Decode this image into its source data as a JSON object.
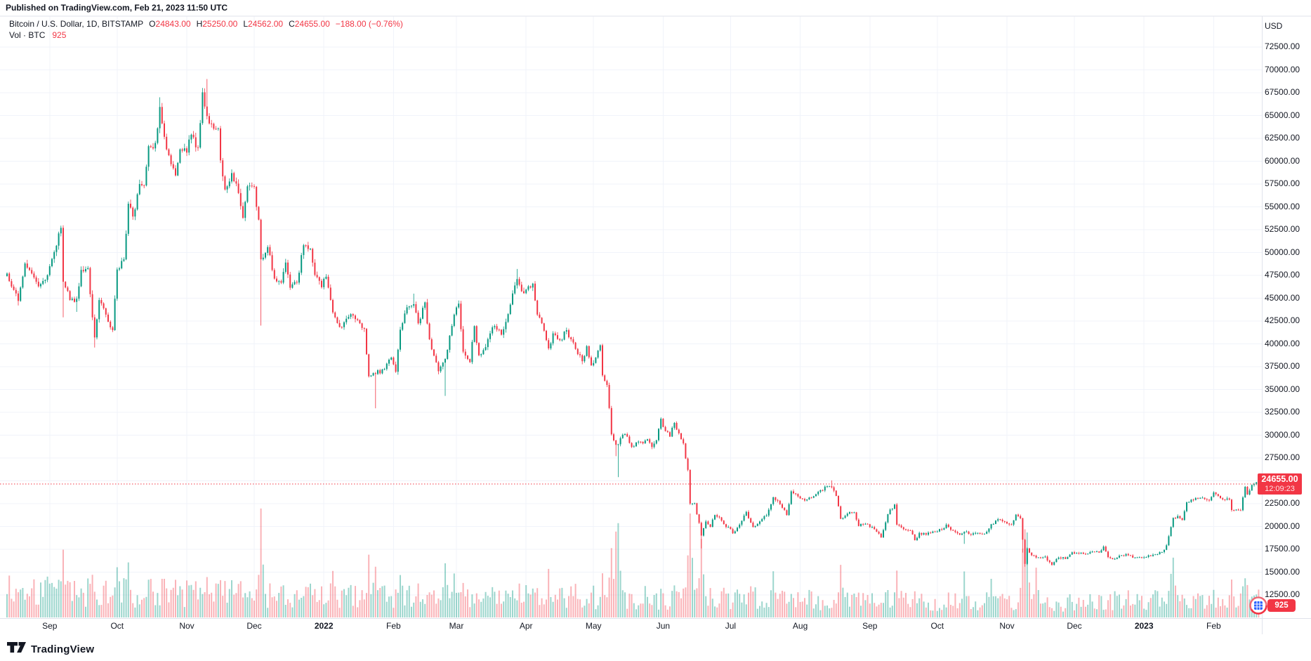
{
  "published_bar": {
    "text": "Published on TradingView.com, Feb 21, 2023 11:50 UTC"
  },
  "legend": {
    "title": "Bitcoin / U.S. Dollar, 1D, BITSTAMP",
    "items": [
      {
        "label": "O",
        "value": "24843.00"
      },
      {
        "label": "H",
        "value": "25250.00"
      },
      {
        "label": "L",
        "value": "24562.00"
      },
      {
        "label": "C",
        "value": "24655.00"
      }
    ],
    "change": "−188.00 (−0.76%)",
    "vol_label": "Vol",
    "vol_sep": "·",
    "vol_asset": "BTC",
    "vol_value": "925"
  },
  "price_axis": {
    "currency_label": "USD",
    "ticks": [
      "72500.00",
      "70000.00",
      "67500.00",
      "65000.00",
      "62500.00",
      "60000.00",
      "57500.00",
      "55000.00",
      "52500.00",
      "50000.00",
      "47500.00",
      "45000.00",
      "42500.00",
      "40000.00",
      "37500.00",
      "35000.00",
      "32500.00",
      "30000.00",
      "27500.00",
      "25000.00",
      "22500.00",
      "20000.00",
      "17500.00",
      "15000.00",
      "12500.00"
    ],
    "last_price_badge": {
      "price": "24655.00",
      "countdown": "12:09:23"
    }
  },
  "time_axis": {
    "labels": [
      {
        "text": "Sep",
        "date": "2021-09-01"
      },
      {
        "text": "Oct",
        "date": "2021-10-01"
      },
      {
        "text": "Nov",
        "date": "2021-11-01"
      },
      {
        "text": "Dec",
        "date": "2021-12-01"
      },
      {
        "text": "2022",
        "date": "2022-01-01",
        "year": true
      },
      {
        "text": "Feb",
        "date": "2022-02-01"
      },
      {
        "text": "Mar",
        "date": "2022-03-01"
      },
      {
        "text": "Apr",
        "date": "2022-04-01"
      },
      {
        "text": "May",
        "date": "2022-05-01"
      },
      {
        "text": "Jun",
        "date": "2022-06-01"
      },
      {
        "text": "Jul",
        "date": "2022-07-01"
      },
      {
        "text": "Aug",
        "date": "2022-08-01"
      },
      {
        "text": "Sep",
        "date": "2022-09-01"
      },
      {
        "text": "Oct",
        "date": "2022-10-01"
      },
      {
        "text": "Nov",
        "date": "2022-11-01"
      },
      {
        "text": "Dec",
        "date": "2022-12-01"
      },
      {
        "text": "2023",
        "date": "2023-01-01",
        "year": true
      },
      {
        "text": "Feb",
        "date": "2023-02-01"
      }
    ]
  },
  "volume_badge": {
    "value": "925"
  },
  "footer": {
    "logo_text": "TradingView"
  },
  "colors": {
    "up": "#089981",
    "down": "#f23645",
    "vol_up": "rgba(8,153,129,0.40)",
    "vol_down": "rgba(242,54,69,0.38)",
    "grid": "#f0f3fa",
    "border": "#e0e3eb",
    "text": "#131722",
    "accent_red": "#f23645",
    "background": "#ffffff"
  },
  "chart_data": {
    "type": "candlestick",
    "symbol": "Bitcoin / U.S. Dollar",
    "exchange": "BITSTAMP",
    "interval": "1D",
    "currency": "USD",
    "current": {
      "open": 24843.0,
      "high": 25250.0,
      "low": 24562.0,
      "close": 24655.0,
      "change": -188.0,
      "change_pct": -0.76,
      "volume_btc": 925
    },
    "last_price": 24655,
    "countdown": "12:09:23",
    "y_axis": {
      "tick_step": 2500,
      "min_tick": 12500,
      "max_tick": 72500,
      "grid": true
    },
    "x_start": "2021-08-13",
    "x_end": "2023-02-21",
    "price_path": [
      {
        "d": "2021-08-13",
        "c": 47700,
        "vb": 0.2
      },
      {
        "d": "2021-08-16",
        "c": 45900
      },
      {
        "d": "2021-08-18",
        "c": 44700,
        "lo": 44200
      },
      {
        "d": "2021-08-21",
        "c": 48800
      },
      {
        "d": "2021-08-24",
        "c": 47700
      },
      {
        "d": "2021-08-27",
        "c": 46300
      },
      {
        "d": "2021-08-30",
        "c": 47000
      },
      {
        "d": "2021-09-02",
        "c": 49300
      },
      {
        "d": "2021-09-06",
        "c": 52700,
        "hi": 52950
      },
      {
        "d": "2021-09-07",
        "c": 46800,
        "lo": 42900,
        "v": 0.45
      },
      {
        "d": "2021-09-10",
        "c": 44800
      },
      {
        "d": "2021-09-13",
        "c": 44950,
        "lo": 43500
      },
      {
        "d": "2021-09-15",
        "c": 48100
      },
      {
        "d": "2021-09-18",
        "c": 48300
      },
      {
        "d": "2021-09-20",
        "c": 42900,
        "v": 0.35
      },
      {
        "d": "2021-09-21",
        "c": 40700,
        "lo": 39600
      },
      {
        "d": "2021-09-23",
        "c": 44800
      },
      {
        "d": "2021-09-26",
        "c": 43200
      },
      {
        "d": "2021-09-29",
        "c": 41500
      },
      {
        "d": "2021-10-01",
        "c": 48150,
        "v": 0.32
      },
      {
        "d": "2021-10-04",
        "c": 49250
      },
      {
        "d": "2021-10-06",
        "c": 55350,
        "v": 0.35
      },
      {
        "d": "2021-10-08",
        "c": 53950
      },
      {
        "d": "2021-10-11",
        "c": 57500
      },
      {
        "d": "2021-10-13",
        "c": 57350
      },
      {
        "d": "2021-10-15",
        "c": 61650,
        "v": 0.3
      },
      {
        "d": "2021-10-18",
        "c": 62000
      },
      {
        "d": "2021-10-20",
        "c": 65950,
        "hi": 67000
      },
      {
        "d": "2021-10-23",
        "c": 61300
      },
      {
        "d": "2021-10-27",
        "c": 58450,
        "v": 0.3
      },
      {
        "d": "2021-10-29",
        "c": 61300
      },
      {
        "d": "2021-11-01",
        "c": 60950,
        "vb": 0.18
      },
      {
        "d": "2021-11-03",
        "c": 62900
      },
      {
        "d": "2021-11-06",
        "c": 61500
      },
      {
        "d": "2021-11-08",
        "c": 67550
      },
      {
        "d": "2021-11-10",
        "c": 64950,
        "hi": 69000,
        "v": 0.32
      },
      {
        "d": "2021-11-12",
        "c": 64100
      },
      {
        "d": "2021-11-15",
        "c": 63600
      },
      {
        "d": "2021-11-16",
        "c": 60100,
        "v": 0.3
      },
      {
        "d": "2021-11-18",
        "c": 56900
      },
      {
        "d": "2021-11-21",
        "c": 58700
      },
      {
        "d": "2021-11-23",
        "c": 57550
      },
      {
        "d": "2021-11-26",
        "c": 53800
      },
      {
        "d": "2021-11-28",
        "c": 57250
      },
      {
        "d": "2021-12-01",
        "c": 57200
      },
      {
        "d": "2021-12-03",
        "c": 53600
      },
      {
        "d": "2021-12-04",
        "c": 49250,
        "lo": 42000,
        "v": 0.68
      },
      {
        "d": "2021-12-07",
        "c": 50600
      },
      {
        "d": "2021-12-10",
        "c": 47150
      },
      {
        "d": "2021-12-13",
        "c": 46700
      },
      {
        "d": "2021-12-15",
        "c": 48900
      },
      {
        "d": "2021-12-17",
        "c": 46150
      },
      {
        "d": "2021-12-20",
        "c": 46700
      },
      {
        "d": "2021-12-23",
        "c": 50800
      },
      {
        "d": "2021-12-26",
        "c": 50400
      },
      {
        "d": "2021-12-28",
        "c": 47550
      },
      {
        "d": "2021-12-31",
        "c": 46200,
        "vb": 0.16
      },
      {
        "d": "2022-01-02",
        "c": 47350
      },
      {
        "d": "2022-01-05",
        "c": 43450,
        "v": 0.3
      },
      {
        "d": "2022-01-08",
        "c": 41850
      },
      {
        "d": "2022-01-11",
        "c": 42750
      },
      {
        "d": "2022-01-14",
        "c": 43100
      },
      {
        "d": "2022-01-17",
        "c": 42250
      },
      {
        "d": "2022-01-19",
        "c": 41650
      },
      {
        "d": "2022-01-21",
        "c": 36450,
        "v": 0.38
      },
      {
        "d": "2022-01-24",
        "c": 36700,
        "lo": 32950,
        "v": 0.42
      },
      {
        "d": "2022-01-27",
        "c": 37200
      },
      {
        "d": "2022-01-31",
        "c": 38500
      },
      {
        "d": "2022-02-02",
        "c": 36950
      },
      {
        "d": "2022-02-04",
        "c": 41550,
        "v": 0.3
      },
      {
        "d": "2022-02-07",
        "c": 44000
      },
      {
        "d": "2022-02-10",
        "c": 44350,
        "hi": 45500
      },
      {
        "d": "2022-02-12",
        "c": 42250
      },
      {
        "d": "2022-02-15",
        "c": 44550
      },
      {
        "d": "2022-02-17",
        "c": 40500
      },
      {
        "d": "2022-02-21",
        "c": 37000
      },
      {
        "d": "2022-02-24",
        "c": 38350,
        "lo": 34300,
        "v": 0.45
      },
      {
        "d": "2022-02-28",
        "c": 43200,
        "v": 0.35
      },
      {
        "d": "2022-03-02",
        "c": 44400
      },
      {
        "d": "2022-03-04",
        "c": 39150
      },
      {
        "d": "2022-03-07",
        "c": 38000
      },
      {
        "d": "2022-03-09",
        "c": 41950
      },
      {
        "d": "2022-03-11",
        "c": 38750
      },
      {
        "d": "2022-03-14",
        "c": 39650
      },
      {
        "d": "2022-03-16",
        "c": 41150
      },
      {
        "d": "2022-03-18",
        "c": 41950
      },
      {
        "d": "2022-03-21",
        "c": 41000
      },
      {
        "d": "2022-03-23",
        "c": 42400
      },
      {
        "d": "2022-03-25",
        "c": 44300
      },
      {
        "d": "2022-03-28",
        "c": 47100,
        "hi": 48200
      },
      {
        "d": "2022-03-31",
        "c": 45550
      },
      {
        "d": "2022-04-02",
        "c": 46300
      },
      {
        "d": "2022-04-04",
        "c": 46600
      },
      {
        "d": "2022-04-06",
        "c": 43200
      },
      {
        "d": "2022-04-08",
        "c": 42250
      },
      {
        "d": "2022-04-11",
        "c": 39500,
        "v": 0.3
      },
      {
        "d": "2022-04-13",
        "c": 41150
      },
      {
        "d": "2022-04-16",
        "c": 40400
      },
      {
        "d": "2022-04-19",
        "c": 41500
      },
      {
        "d": "2022-04-21",
        "c": 40500
      },
      {
        "d": "2022-04-23",
        "c": 39450
      },
      {
        "d": "2022-04-26",
        "c": 38100
      },
      {
        "d": "2022-04-28",
        "c": 39750
      },
      {
        "d": "2022-04-30",
        "c": 37650,
        "vb": 0.16
      },
      {
        "d": "2022-05-02",
        "c": 38500
      },
      {
        "d": "2022-05-04",
        "c": 39850
      },
      {
        "d": "2022-05-05",
        "c": 36550,
        "v": 0.35
      },
      {
        "d": "2022-05-07",
        "c": 35500
      },
      {
        "d": "2022-05-09",
        "c": 30100,
        "v": 0.5
      },
      {
        "d": "2022-05-11",
        "c": 28950,
        "lo": 27700,
        "v": 0.62
      },
      {
        "d": "2022-05-12",
        "c": 29000,
        "lo": 25400,
        "v": 0.75
      },
      {
        "d": "2022-05-14",
        "c": 30050
      },
      {
        "d": "2022-05-16",
        "c": 29850
      },
      {
        "d": "2022-05-18",
        "c": 28700
      },
      {
        "d": "2022-05-20",
        "c": 29200
      },
      {
        "d": "2022-05-23",
        "c": 29100
      },
      {
        "d": "2022-05-25",
        "c": 29550
      },
      {
        "d": "2022-05-27",
        "c": 28700
      },
      {
        "d": "2022-05-29",
        "c": 29450
      },
      {
        "d": "2022-05-31",
        "c": 31800
      },
      {
        "d": "2022-06-02",
        "c": 30450
      },
      {
        "d": "2022-06-04",
        "c": 29850
      },
      {
        "d": "2022-06-06",
        "c": 31350
      },
      {
        "d": "2022-06-08",
        "c": 30200
      },
      {
        "d": "2022-06-10",
        "c": 29100
      },
      {
        "d": "2022-06-12",
        "c": 26200,
        "v": 0.5
      },
      {
        "d": "2022-06-13",
        "c": 22500,
        "v": 0.88
      },
      {
        "d": "2022-06-15",
        "c": 22550
      },
      {
        "d": "2022-06-17",
        "c": 20400
      },
      {
        "d": "2022-06-18",
        "c": 19000,
        "lo": 17600,
        "v": 0.55
      },
      {
        "d": "2022-06-20",
        "c": 20550
      },
      {
        "d": "2022-06-22",
        "c": 19950
      },
      {
        "d": "2022-06-24",
        "c": 21250
      },
      {
        "d": "2022-06-26",
        "c": 21000
      },
      {
        "d": "2022-06-28",
        "c": 20250
      },
      {
        "d": "2022-06-30",
        "c": 19950,
        "vb": 0.15
      },
      {
        "d": "2022-07-02",
        "c": 19250
      },
      {
        "d": "2022-07-05",
        "c": 20200
      },
      {
        "d": "2022-07-08",
        "c": 21600
      },
      {
        "d": "2022-07-11",
        "c": 19950
      },
      {
        "d": "2022-07-14",
        "c": 20550
      },
      {
        "d": "2022-07-17",
        "c": 21200
      },
      {
        "d": "2022-07-20",
        "c": 23200,
        "v": 0.3
      },
      {
        "d": "2022-07-23",
        "c": 22450
      },
      {
        "d": "2022-07-26",
        "c": 21250
      },
      {
        "d": "2022-07-28",
        "c": 23850
      },
      {
        "d": "2022-07-31",
        "c": 23300
      },
      {
        "d": "2022-08-03",
        "c": 22850
      },
      {
        "d": "2022-08-06",
        "c": 23150
      },
      {
        "d": "2022-08-09",
        "c": 23800
      },
      {
        "d": "2022-08-11",
        "c": 23950
      },
      {
        "d": "2022-08-13",
        "c": 24400
      },
      {
        "d": "2022-08-15",
        "c": 24300,
        "hi": 25050
      },
      {
        "d": "2022-08-17",
        "c": 23350
      },
      {
        "d": "2022-08-19",
        "c": 20850,
        "v": 0.38
      },
      {
        "d": "2022-08-22",
        "c": 21400
      },
      {
        "d": "2022-08-25",
        "c": 21550
      },
      {
        "d": "2022-08-27",
        "c": 20050
      },
      {
        "d": "2022-08-30",
        "c": 20300
      },
      {
        "d": "2022-09-02",
        "c": 19950,
        "vb": 0.13
      },
      {
        "d": "2022-09-06",
        "c": 18800
      },
      {
        "d": "2022-09-09",
        "c": 21350
      },
      {
        "d": "2022-09-12",
        "c": 22400
      },
      {
        "d": "2022-09-13",
        "c": 20200,
        "v": 0.32
      },
      {
        "d": "2022-09-16",
        "c": 19700
      },
      {
        "d": "2022-09-19",
        "c": 19550
      },
      {
        "d": "2022-09-21",
        "c": 18500
      },
      {
        "d": "2022-09-23",
        "c": 19300
      },
      {
        "d": "2022-09-26",
        "c": 19100
      },
      {
        "d": "2022-09-30",
        "c": 19400
      },
      {
        "d": "2022-10-03",
        "c": 19650
      },
      {
        "d": "2022-10-05",
        "c": 20200
      },
      {
        "d": "2022-10-08",
        "c": 19550
      },
      {
        "d": "2022-10-11",
        "c": 19100
      },
      {
        "d": "2022-10-13",
        "c": 19400,
        "lo": 18100,
        "v": 0.3
      },
      {
        "d": "2022-10-16",
        "c": 19100
      },
      {
        "d": "2022-10-19",
        "c": 19300
      },
      {
        "d": "2022-10-22",
        "c": 19200
      },
      {
        "d": "2022-10-25",
        "c": 20250,
        "v": 0.3
      },
      {
        "d": "2022-10-28",
        "c": 20800
      },
      {
        "d": "2022-10-31",
        "c": 20500
      },
      {
        "d": "2022-11-03",
        "c": 20200
      },
      {
        "d": "2022-11-05",
        "c": 21300
      },
      {
        "d": "2022-11-07",
        "c": 20900
      },
      {
        "d": "2022-11-08",
        "c": 18550,
        "lo": 17150,
        "v": 0.45
      },
      {
        "d": "2022-11-09",
        "c": 15900,
        "lo": 15600,
        "v": 0.55
      },
      {
        "d": "2022-11-10",
        "c": 17600,
        "v": 0.52
      },
      {
        "d": "2022-11-12",
        "c": 16850
      },
      {
        "d": "2022-11-14",
        "c": 16600,
        "v": 0.35
      },
      {
        "d": "2022-11-16",
        "c": 16550
      },
      {
        "d": "2022-11-18",
        "c": 16700
      },
      {
        "d": "2022-11-21",
        "c": 15800
      },
      {
        "d": "2022-11-24",
        "c": 16600
      },
      {
        "d": "2022-11-27",
        "c": 16450
      },
      {
        "d": "2022-11-30",
        "c": 17170,
        "vb": 0.11
      },
      {
        "d": "2022-12-03",
        "c": 17050
      },
      {
        "d": "2022-12-06",
        "c": 17000
      },
      {
        "d": "2022-12-09",
        "c": 17250
      },
      {
        "d": "2022-12-12",
        "c": 17150
      },
      {
        "d": "2022-12-14",
        "c": 17800
      },
      {
        "d": "2022-12-16",
        "c": 16650
      },
      {
        "d": "2022-12-19",
        "c": 16450
      },
      {
        "d": "2022-12-22",
        "c": 16850
      },
      {
        "d": "2022-12-25",
        "c": 16850
      },
      {
        "d": "2022-12-28",
        "c": 16600
      },
      {
        "d": "2022-12-31",
        "c": 16550
      },
      {
        "d": "2023-01-03",
        "c": 16850
      },
      {
        "d": "2023-01-06",
        "c": 16950
      },
      {
        "d": "2023-01-09",
        "c": 17200
      },
      {
        "d": "2023-01-11",
        "c": 17950
      },
      {
        "d": "2023-01-13",
        "c": 19950,
        "v": 0.35
      },
      {
        "d": "2023-01-14",
        "c": 20950,
        "v": 0.42
      },
      {
        "d": "2023-01-16",
        "c": 21150
      },
      {
        "d": "2023-01-18",
        "c": 20700
      },
      {
        "d": "2023-01-20",
        "c": 22650
      },
      {
        "d": "2023-01-23",
        "c": 22900
      },
      {
        "d": "2023-01-25",
        "c": 23050
      },
      {
        "d": "2023-01-28",
        "c": 23000
      },
      {
        "d": "2023-01-30",
        "c": 22850
      },
      {
        "d": "2023-02-01",
        "c": 23730,
        "vb": 0.15
      },
      {
        "d": "2023-02-03",
        "c": 23350
      },
      {
        "d": "2023-02-06",
        "c": 22950
      },
      {
        "d": "2023-02-08",
        "c": 22950
      },
      {
        "d": "2023-02-09",
        "c": 21800,
        "v": 0.3
      },
      {
        "d": "2023-02-11",
        "c": 21850
      },
      {
        "d": "2023-02-13",
        "c": 21780
      },
      {
        "d": "2023-02-15",
        "c": 24350,
        "v": 0.3
      },
      {
        "d": "2023-02-16",
        "c": 23500
      },
      {
        "d": "2023-02-18",
        "c": 24550
      },
      {
        "d": "2023-02-20",
        "c": 24843
      },
      {
        "d": "2023-02-21",
        "c": 24655,
        "o": 24843,
        "hi": 25250,
        "lo": 24562,
        "v": 0.22
      }
    ]
  }
}
